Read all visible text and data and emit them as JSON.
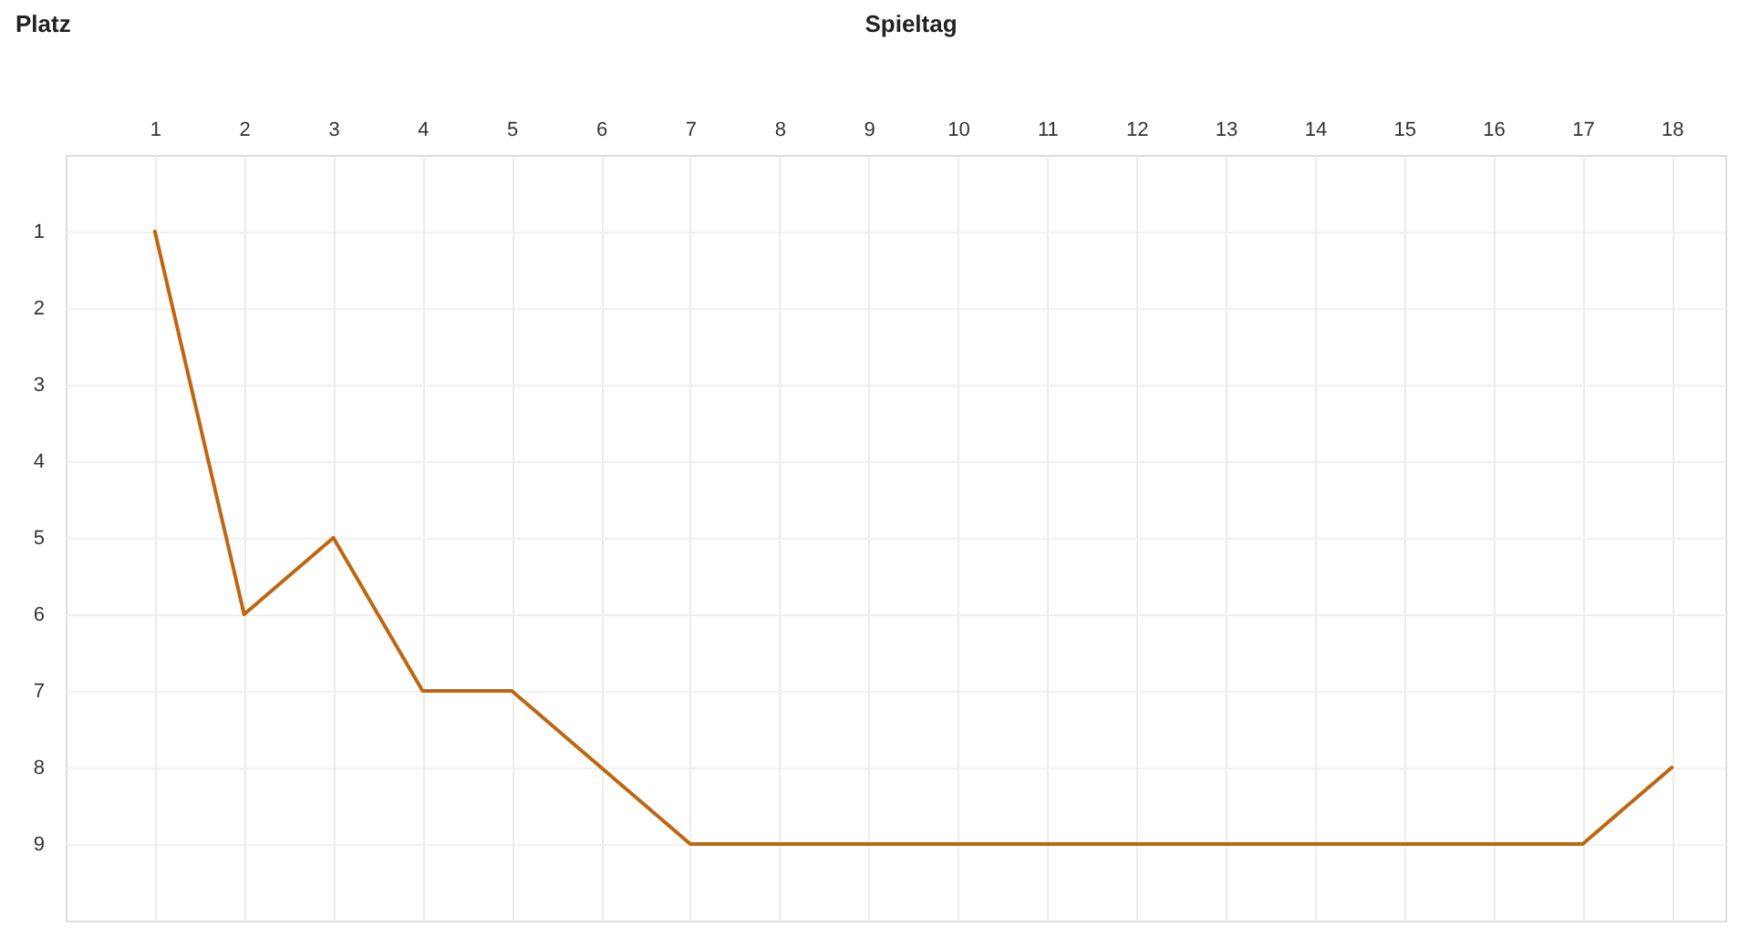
{
  "chart_data": {
    "type": "line",
    "xlabel": "Spieltag",
    "ylabel": "Platz",
    "x": [
      1,
      2,
      3,
      4,
      5,
      6,
      7,
      8,
      9,
      10,
      11,
      12,
      13,
      14,
      15,
      16,
      17,
      18
    ],
    "series": [
      {
        "color": "#bf6710",
        "values": [
          1,
          6,
          5,
          7,
          7,
          8,
          9,
          9,
          9,
          9,
          9,
          9,
          9,
          9,
          9,
          9,
          9,
          8
        ]
      }
    ],
    "xlim": [
      0,
      18.6
    ],
    "xticks": [
      1,
      2,
      3,
      4,
      5,
      6,
      7,
      8,
      9,
      10,
      11,
      12,
      13,
      14,
      15,
      16,
      17,
      18
    ],
    "ylim": [
      10,
      0
    ],
    "yticks": [
      1,
      2,
      3,
      4,
      5,
      6,
      7,
      8,
      9
    ],
    "grid": true,
    "line_style": "solid"
  }
}
